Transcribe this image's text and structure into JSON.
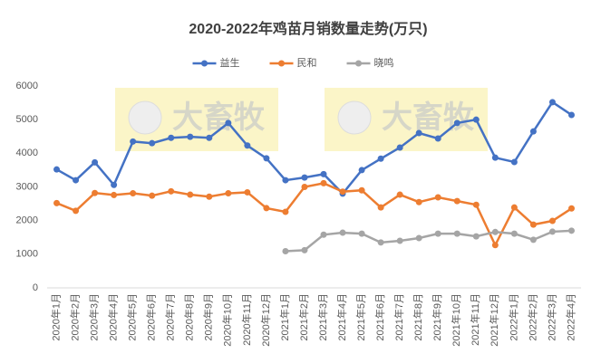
{
  "chart_data": {
    "type": "line",
    "title": "2020-2022年鸡苗月销数量走势(万只)",
    "watermark": "大畜牧",
    "categories": [
      "2020年1月",
      "2020年2月",
      "2020年3月",
      "2020年4月",
      "2020年5月",
      "2020年6月",
      "2020年7月",
      "2020年8月",
      "2020年9月",
      "2020年10月",
      "2020年11月",
      "2020年12月",
      "2021年1月",
      "2021年2月",
      "2021年3月",
      "2021年4月",
      "2021年5月",
      "2021年6月",
      "2021年7月",
      "2021年8月",
      "2021年9月",
      "2021年10月",
      "2021年11月",
      "2021年12月",
      "2022年1月",
      "2022年2月",
      "2022年3月",
      "2022年4月"
    ],
    "series": [
      {
        "name": "益生",
        "color": "#4472c4",
        "values": [
          3520,
          3200,
          3730,
          3060,
          4350,
          4300,
          4460,
          4490,
          4460,
          4900,
          4230,
          3850,
          3200,
          3280,
          3380,
          2800,
          3500,
          3840,
          4170,
          4600,
          4440,
          4900,
          5000,
          3870,
          3740,
          4650,
          5520,
          5140
        ]
      },
      {
        "name": "民和",
        "color": "#ed7d31",
        "values": [
          2520,
          2290,
          2820,
          2760,
          2810,
          2740,
          2870,
          2770,
          2710,
          2810,
          2840,
          2370,
          2260,
          3000,
          3110,
          2860,
          2900,
          2390,
          2770,
          2550,
          2690,
          2580,
          2470,
          1270,
          2390,
          1880,
          1990,
          2360
        ]
      },
      {
        "name": "晓鸣",
        "color": "#a5a5a5",
        "values": [
          null,
          null,
          null,
          null,
          null,
          null,
          null,
          null,
          null,
          null,
          null,
          null,
          1090,
          1120,
          1580,
          1640,
          1610,
          1350,
          1400,
          1480,
          1610,
          1610,
          1530,
          1660,
          1610,
          1430,
          1670,
          1700
        ]
      }
    ],
    "ylim": [
      0,
      6000
    ],
    "yticks": [
      0,
      1000,
      2000,
      3000,
      4000,
      5000,
      6000
    ],
    "grid": false,
    "legend": "top"
  }
}
